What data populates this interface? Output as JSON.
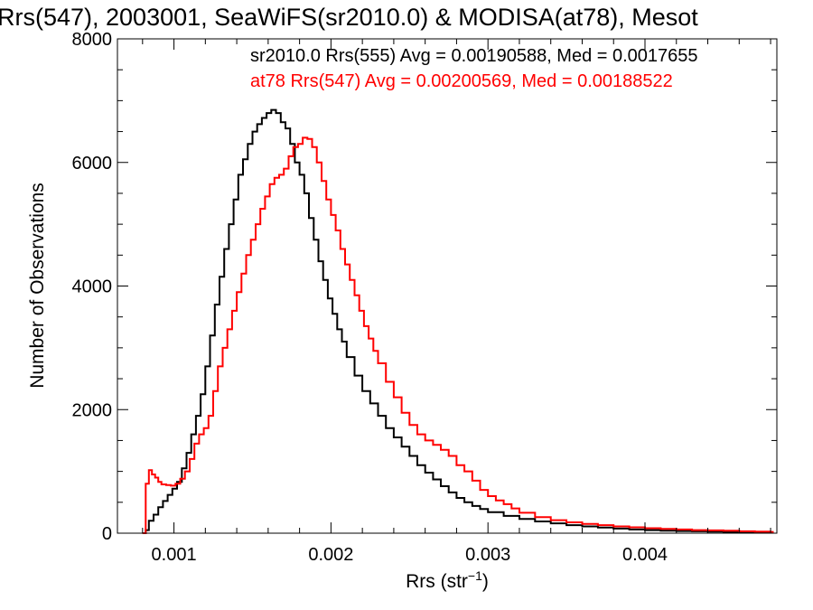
{
  "chart_data": {
    "type": "line",
    "title": "Rrs(547), 2003001, SeaWiFS(sr2010.0) & MODISA(at78), Mesot",
    "xlabel_main": "Rrs (str",
    "xlabel_sup": "−1",
    "xlabel_end": ")",
    "ylabel": "Number of Observations",
    "xlim": [
      0.00064,
      0.00484
    ],
    "ylim": [
      0,
      8000
    ],
    "x_ticks": [
      0.001,
      0.002,
      0.003,
      0.004
    ],
    "x_tick_labels": [
      "0.001",
      "0.002",
      "0.003",
      "0.004"
    ],
    "y_ticks": [
      0,
      2000,
      4000,
      6000,
      8000
    ],
    "y_tick_labels": [
      "0",
      "2000",
      "4000",
      "6000",
      "8000"
    ],
    "grid": false,
    "series": [
      {
        "name": "sr2010.0 Rrs(555) Avg = 0.00190588, Med = 0.0017655",
        "color": "#000000",
        "points": [
          [
            0.0008,
            0
          ],
          [
            0.00082,
            50
          ],
          [
            0.00084,
            200
          ],
          [
            0.00087,
            300
          ],
          [
            0.0009,
            420
          ],
          [
            0.00093,
            520
          ],
          [
            0.00096,
            620
          ],
          [
            0.00099,
            720
          ],
          [
            0.00102,
            830
          ],
          [
            0.00105,
            1050
          ],
          [
            0.00108,
            1300
          ],
          [
            0.00111,
            1600
          ],
          [
            0.00114,
            1900
          ],
          [
            0.00117,
            2250
          ],
          [
            0.0012,
            2700
          ],
          [
            0.00123,
            3200
          ],
          [
            0.00126,
            3700
          ],
          [
            0.00129,
            4150
          ],
          [
            0.00132,
            4600
          ],
          [
            0.00135,
            5000
          ],
          [
            0.00138,
            5400
          ],
          [
            0.00141,
            5800
          ],
          [
            0.00144,
            6050
          ],
          [
            0.00147,
            6300
          ],
          [
            0.0015,
            6500
          ],
          [
            0.00153,
            6620
          ],
          [
            0.00156,
            6720
          ],
          [
            0.00159,
            6800
          ],
          [
            0.00162,
            6850
          ],
          [
            0.00165,
            6800
          ],
          [
            0.00168,
            6650
          ],
          [
            0.00171,
            6550
          ],
          [
            0.00174,
            6300
          ],
          [
            0.00177,
            6000
          ],
          [
            0.0018,
            5800
          ],
          [
            0.00183,
            5500
          ],
          [
            0.00186,
            5100
          ],
          [
            0.00189,
            4750
          ],
          [
            0.00192,
            4400
          ],
          [
            0.00195,
            4100
          ],
          [
            0.00198,
            3800
          ],
          [
            0.00201,
            3550
          ],
          [
            0.00204,
            3300
          ],
          [
            0.00207,
            3100
          ],
          [
            0.0021,
            2850
          ],
          [
            0.00215,
            2550
          ],
          [
            0.0022,
            2300
          ],
          [
            0.00225,
            2100
          ],
          [
            0.0023,
            1900
          ],
          [
            0.00235,
            1700
          ],
          [
            0.0024,
            1550
          ],
          [
            0.00245,
            1400
          ],
          [
            0.0025,
            1250
          ],
          [
            0.00255,
            1100
          ],
          [
            0.0026,
            980
          ],
          [
            0.00265,
            870
          ],
          [
            0.0027,
            760
          ],
          [
            0.00275,
            660
          ],
          [
            0.0028,
            570
          ],
          [
            0.00285,
            500
          ],
          [
            0.0029,
            440
          ],
          [
            0.00295,
            390
          ],
          [
            0.003,
            340
          ],
          [
            0.0031,
            280
          ],
          [
            0.0032,
            230
          ],
          [
            0.0033,
            190
          ],
          [
            0.0034,
            160
          ],
          [
            0.0035,
            130
          ],
          [
            0.0036,
            110
          ],
          [
            0.0037,
            90
          ],
          [
            0.0038,
            75
          ],
          [
            0.0039,
            60
          ],
          [
            0.004,
            50
          ],
          [
            0.0041,
            40
          ],
          [
            0.0042,
            35
          ],
          [
            0.0043,
            30
          ],
          [
            0.0044,
            25
          ],
          [
            0.0045,
            20
          ],
          [
            0.0046,
            15
          ],
          [
            0.0047,
            10
          ],
          [
            0.0048,
            8
          ]
        ]
      },
      {
        "name": "at78 Rrs(547) Avg = 0.00200569, Med = 0.00188522",
        "color": "#ff0000",
        "points": [
          [
            0.0008,
            0
          ],
          [
            0.00082,
            800
          ],
          [
            0.00084,
            1020
          ],
          [
            0.00086,
            950
          ],
          [
            0.00088,
            900
          ],
          [
            0.0009,
            830
          ],
          [
            0.00092,
            790
          ],
          [
            0.00095,
            780
          ],
          [
            0.00098,
            770
          ],
          [
            0.00101,
            800
          ],
          [
            0.00104,
            880
          ],
          [
            0.00107,
            1000
          ],
          [
            0.0011,
            1200
          ],
          [
            0.00113,
            1450
          ],
          [
            0.00116,
            1600
          ],
          [
            0.00119,
            1700
          ],
          [
            0.00122,
            1900
          ],
          [
            0.00125,
            2300
          ],
          [
            0.00128,
            2700
          ],
          [
            0.00131,
            3000
          ],
          [
            0.00134,
            3300
          ],
          [
            0.00137,
            3600
          ],
          [
            0.0014,
            3900
          ],
          [
            0.00143,
            4200
          ],
          [
            0.00146,
            4500
          ],
          [
            0.00149,
            4750
          ],
          [
            0.00152,
            5000
          ],
          [
            0.00155,
            5250
          ],
          [
            0.00158,
            5450
          ],
          [
            0.00161,
            5650
          ],
          [
            0.00164,
            5750
          ],
          [
            0.00167,
            5800
          ],
          [
            0.0017,
            5900
          ],
          [
            0.00173,
            6100
          ],
          [
            0.00176,
            6250
          ],
          [
            0.00179,
            6300
          ],
          [
            0.00182,
            6400
          ],
          [
            0.00185,
            6380
          ],
          [
            0.00188,
            6250
          ],
          [
            0.00191,
            6000
          ],
          [
            0.00194,
            5700
          ],
          [
            0.00197,
            5400
          ],
          [
            0.002,
            5150
          ],
          [
            0.00203,
            4900
          ],
          [
            0.00206,
            4600
          ],
          [
            0.00209,
            4350
          ],
          [
            0.00212,
            4100
          ],
          [
            0.00215,
            3850
          ],
          [
            0.00218,
            3600
          ],
          [
            0.00221,
            3350
          ],
          [
            0.00224,
            3150
          ],
          [
            0.00227,
            2950
          ],
          [
            0.0023,
            2750
          ],
          [
            0.00235,
            2450
          ],
          [
            0.0024,
            2200
          ],
          [
            0.00245,
            1950
          ],
          [
            0.0025,
            1750
          ],
          [
            0.00255,
            1600
          ],
          [
            0.0026,
            1500
          ],
          [
            0.00265,
            1430
          ],
          [
            0.0027,
            1350
          ],
          [
            0.00275,
            1250
          ],
          [
            0.0028,
            1100
          ],
          [
            0.00285,
            1000
          ],
          [
            0.0029,
            850
          ],
          [
            0.00295,
            700
          ],
          [
            0.003,
            600
          ],
          [
            0.00305,
            530
          ],
          [
            0.0031,
            470
          ],
          [
            0.00315,
            400
          ],
          [
            0.0032,
            330
          ],
          [
            0.0033,
            260
          ],
          [
            0.0034,
            210
          ],
          [
            0.0035,
            175
          ],
          [
            0.0036,
            150
          ],
          [
            0.0037,
            130
          ],
          [
            0.0038,
            110
          ],
          [
            0.0039,
            95
          ],
          [
            0.004,
            80
          ],
          [
            0.0041,
            70
          ],
          [
            0.0042,
            60
          ],
          [
            0.0043,
            50
          ],
          [
            0.0044,
            45
          ],
          [
            0.0045,
            40
          ],
          [
            0.0046,
            30
          ],
          [
            0.0047,
            25
          ],
          [
            0.0048,
            20
          ]
        ]
      }
    ]
  }
}
